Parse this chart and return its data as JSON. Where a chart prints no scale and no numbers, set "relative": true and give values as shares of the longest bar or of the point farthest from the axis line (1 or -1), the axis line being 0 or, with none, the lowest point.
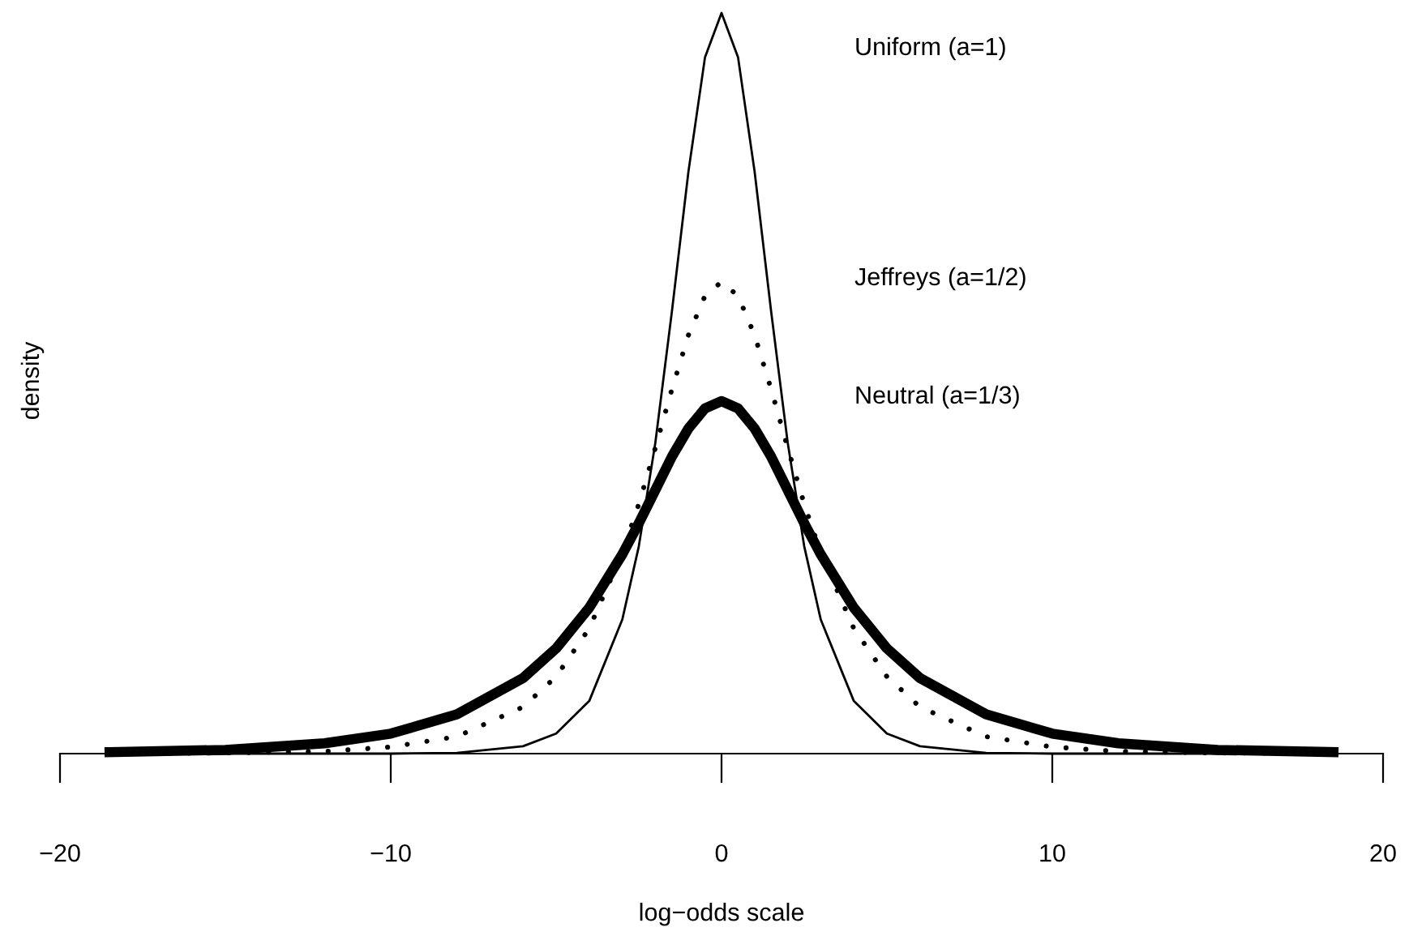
{
  "chart_data": {
    "type": "line",
    "relative": true,
    "xlabel": "log−odds scale",
    "ylabel": "density",
    "x": [
      -18.5,
      -15,
      -12,
      -10,
      -8,
      -6,
      -5,
      -4,
      -3,
      -2.5,
      -2,
      -1.5,
      -1,
      -0.5,
      0,
      0.5,
      1,
      1.5,
      2,
      2.5,
      3,
      4,
      5,
      6,
      8,
      10,
      12,
      15,
      18.5
    ],
    "xlim": [
      -20,
      20
    ],
    "xticks": [
      {
        "value": -20,
        "label": "−20"
      },
      {
        "value": -10,
        "label": "−10"
      },
      0,
      10,
      20
    ],
    "tick_labels": "x",
    "grid": false,
    "legend": false,
    "marker": "none",
    "annotations": [
      "Uniform (a=1)",
      "Jeffreys (a=1/2)",
      "Neutral (a=1/3)"
    ],
    "series": [
      {
        "color": "#000000",
        "line_style": "solid",
        "values": [
          0,
          0,
          0,
          0,
          0.001,
          0.01,
          0.027,
          0.071,
          0.181,
          0.28,
          0.42,
          0.597,
          0.786,
          0.94,
          1,
          0.94,
          0.786,
          0.597,
          0.42,
          0.28,
          0.181,
          0.071,
          0.027,
          0.01,
          0.001,
          0,
          0,
          0,
          0
        ]
      },
      {
        "color": "#000000",
        "line_style": "dotted",
        "values": [
          0,
          0.001,
          0.003,
          0.009,
          0.023,
          0.063,
          0.104,
          0.169,
          0.271,
          0.337,
          0.413,
          0.492,
          0.565,
          0.618,
          0.637,
          0.618,
          0.565,
          0.492,
          0.413,
          0.337,
          0.271,
          0.169,
          0.104,
          0.063,
          0.023,
          0.009,
          0.003,
          0.001,
          0
        ]
      },
      {
        "color": "#000000",
        "line_style": "solid",
        "values": [
          0.002,
          0.005,
          0.014,
          0.027,
          0.053,
          0.102,
          0.142,
          0.197,
          0.269,
          0.311,
          0.356,
          0.401,
          0.439,
          0.466,
          0.476,
          0.466,
          0.439,
          0.401,
          0.356,
          0.311,
          0.269,
          0.197,
          0.142,
          0.102,
          0.053,
          0.027,
          0.014,
          0.005,
          0.002
        ]
      }
    ]
  }
}
